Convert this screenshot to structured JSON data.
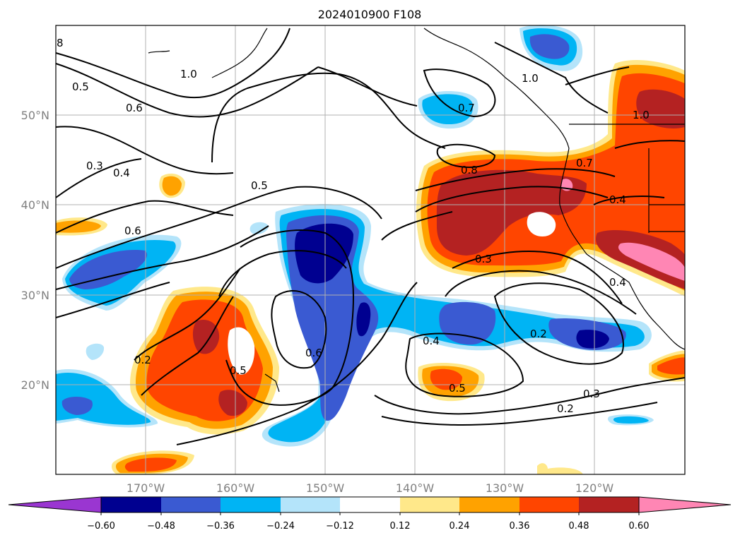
{
  "title": "2024010900 F108",
  "map": {
    "lat_labels": [
      "50°N",
      "40°N",
      "30°N",
      "20°N"
    ],
    "lon_labels": [
      "170°W",
      "160°W",
      "150°W",
      "140°W",
      "130°W",
      "120°W"
    ],
    "lat_values": [
      50,
      40,
      30,
      20
    ],
    "lon_values": [
      -170,
      -160,
      -150,
      -140,
      -130,
      -120
    ],
    "extent": {
      "lon_min": -180,
      "lon_max": -110,
      "lat_min": 10,
      "lat_max": 60
    },
    "grid": true,
    "contour_labels": [
      "8",
      "1.0",
      "0.5",
      "0.6",
      "0.3",
      "0.4",
      "0.6",
      "0.5",
      "0.2",
      "0.5",
      "0.6",
      "0.7",
      "0.8",
      "1.0",
      "0.7",
      "1.0",
      "0.4",
      "0.3",
      "0.4",
      "0.4",
      "0.2",
      "0.5",
      "0.3",
      "0.2"
    ]
  },
  "colorbar": {
    "tick_labels": [
      "−0.60",
      "−0.48",
      "−0.36",
      "−0.24",
      "−0.12",
      "0.12",
      "0.24",
      "0.36",
      "0.48",
      "0.60"
    ],
    "levels": [
      -0.6,
      -0.48,
      -0.36,
      -0.24,
      -0.12,
      0.12,
      0.24,
      0.36,
      0.48,
      0.6
    ],
    "colors": [
      "#9a36d1",
      "#000090",
      "#3a5ad2",
      "#00b4f4",
      "#b4e4fa",
      "#ffffff",
      "#ffe88a",
      "#ffa200",
      "#ff4500",
      "#b42222",
      "#ff86b4"
    ],
    "extend": "both"
  },
  "colors": {
    "neg_1": "#b4e4fa",
    "neg_2": "#00b4f4",
    "neg_3": "#3a5ad2",
    "neg_4": "#000090",
    "pos_1": "#ffe88a",
    "pos_2": "#ffa200",
    "pos_3": "#ff4500",
    "pos_4": "#b42222",
    "pos_5": "#ff86b4"
  }
}
